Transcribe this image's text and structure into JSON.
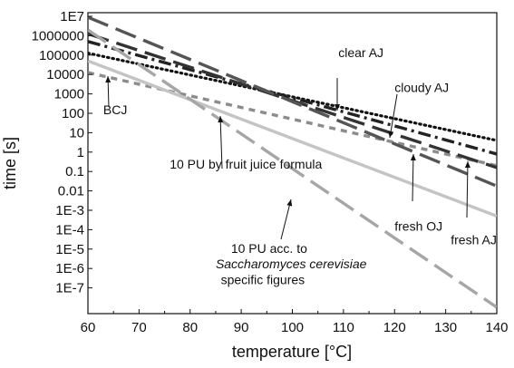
{
  "chart_data": {
    "type": "line",
    "title": "",
    "xlabel": "temperature [°C]",
    "ylabel": "time [s]",
    "x_scale": "linear",
    "y_scale": "log",
    "xlim": [
      60,
      140
    ],
    "ylim_exponent": [
      -8,
      7
    ],
    "grid": false,
    "x_ticks": [
      60,
      70,
      80,
      90,
      100,
      110,
      120,
      130,
      140
    ],
    "x_tick_labels": [
      "60",
      "70",
      "80",
      "90",
      "100",
      "110",
      "120",
      "130",
      "140"
    ],
    "y_ticks_exp": [
      7,
      6,
      5,
      4,
      3,
      2,
      1,
      0,
      -1,
      -2,
      -3,
      -4,
      -5,
      -6,
      -7
    ],
    "y_tick_labels": [
      "1E7",
      "1000000",
      "100000",
      "10000",
      "1000",
      "100",
      "10",
      "1",
      "0.1",
      "0.01",
      "1E-3",
      "1E-4",
      "1E-5",
      "1E-6",
      "1E-7"
    ],
    "series": [
      {
        "name": "BCJ",
        "x": [
          60,
          140
        ],
        "y_log10": [
          4.1,
          -0.7
        ],
        "style": "short-dash",
        "color": "#8c8c8c"
      },
      {
        "name": "clear AJ",
        "x": [
          60,
          140
        ],
        "y_log10": [
          5.1,
          0.6
        ],
        "style": "dotted",
        "color": "#111111"
      },
      {
        "name": "cloudy AJ",
        "x": [
          60,
          140
        ],
        "y_log10": [
          5.7,
          -0.1
        ],
        "style": "dash-dot",
        "color": "#222222"
      },
      {
        "name": "fresh OJ",
        "x": [
          60,
          140
        ],
        "y_log10": [
          6.1,
          -0.8
        ],
        "style": "long-dash",
        "color": "#333333"
      },
      {
        "name": "fresh AJ",
        "x": [
          60,
          140
        ],
        "y_log10": [
          6.95,
          -1.75
        ],
        "style": "long-dash",
        "color": "#555555"
      },
      {
        "name": "10 PU by fruit juice formula",
        "x": [
          60,
          140
        ],
        "y_log10": [
          4.7,
          -3.3
        ],
        "style": "solid",
        "color": "#c4c4c4"
      },
      {
        "name": "10 PU acc. to Saccharomyces cerevisiae specific figures",
        "x": [
          60,
          140
        ],
        "y_log10": [
          6.3,
          -8.0
        ],
        "style": "long-dash",
        "color": "#a6a6a6"
      }
    ],
    "annotations": [
      {
        "text": "clear AJ",
        "x": 109,
        "y_log10": 4.9
      },
      {
        "text": "cloudy AJ",
        "x": 120,
        "y_log10": 3.1
      },
      {
        "text": "BCJ",
        "x": 63,
        "y_log10": 1.95
      },
      {
        "text": "10 PU by fruit juice formula",
        "x": 76,
        "y_log10": -0.85
      },
      {
        "text": "fresh OJ",
        "x": 120,
        "y_log10": -4.05
      },
      {
        "text": "fresh AJ",
        "x": 131,
        "y_log10": -4.75
      },
      {
        "text": "10 PU acc. to",
        "x": 88,
        "y_log10": -5.2
      },
      {
        "text": "Saccharomyces cerevisiae",
        "x": 85,
        "y_log10": -6.0,
        "italic": true
      },
      {
        "text": "specific figures",
        "x": 86,
        "y_log10": -6.8
      }
    ]
  }
}
